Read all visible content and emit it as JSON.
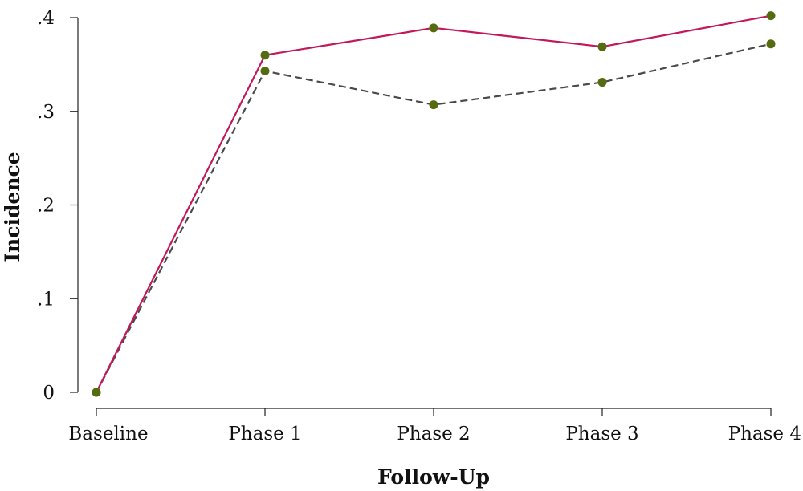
{
  "chart_data": {
    "type": "line",
    "title": "",
    "xlabel": "Follow-Up",
    "ylabel": "Incidence",
    "categories": [
      "Baseline",
      "Phase 1",
      "Phase 2",
      "Phase 3",
      "Phase 4"
    ],
    "yticks": [
      {
        "value": 0,
        "label": "0"
      },
      {
        "value": 0.1,
        "label": ".1"
      },
      {
        "value": 0.2,
        "label": ".2"
      },
      {
        "value": 0.3,
        "label": ".3"
      },
      {
        "value": 0.4,
        "label": ".4"
      }
    ],
    "ylim": [
      0,
      0.4
    ],
    "grid": false,
    "legend": "none",
    "series": [
      {
        "values": [
          0,
          0.36,
          0.389,
          0.369,
          0.402
        ],
        "color": "#c2185b",
        "line_style": "solid",
        "marker_color": "#556b10"
      },
      {
        "values": [
          0,
          0.343,
          0.307,
          0.331,
          0.372
        ],
        "color": "#4a4a4a",
        "line_style": "dashed",
        "marker_color": "#556b10"
      }
    ]
  }
}
